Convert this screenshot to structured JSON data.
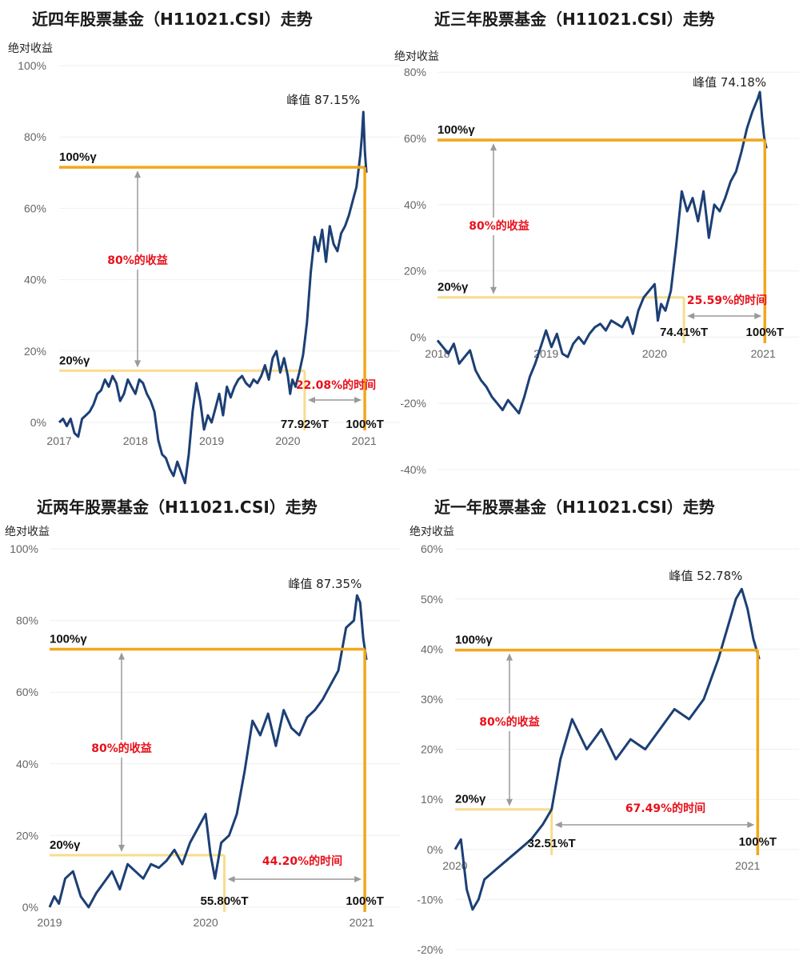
{
  "panels": [
    {
      "title": "近四年股票基金（H11021.CSI）走势",
      "ylabel": "绝对收益",
      "chart_data": {
        "type": "line",
        "x_ticks": [
          "2017",
          "2018",
          "2019",
          "2020",
          "2021"
        ],
        "x_range": [
          2017.0,
          2021.05
        ],
        "y_ticks": [
          "0%",
          "20%",
          "40%",
          "60%",
          "80%",
          "100%"
        ],
        "ylim": [
          -18,
          100
        ],
        "series": [
          {
            "x": [
              2017.0,
              2017.05,
              2017.1,
              2017.15,
              2017.2,
              2017.25,
              2017.3,
              2017.35,
              2017.4,
              2017.45,
              2017.5,
              2017.55,
              2017.6,
              2017.65,
              2017.7,
              2017.75,
              2017.8,
              2017.85,
              2017.9,
              2017.95,
              2018.0,
              2018.05,
              2018.1,
              2018.15,
              2018.2,
              2018.25,
              2018.3,
              2018.35,
              2018.4,
              2018.45,
              2018.5,
              2018.55,
              2018.6,
              2018.65,
              2018.7,
              2018.75,
              2018.8,
              2018.85,
              2018.9,
              2018.95,
              2019.0,
              2019.05,
              2019.1,
              2019.15,
              2019.2,
              2019.25,
              2019.3,
              2019.35,
              2019.4,
              2019.45,
              2019.5,
              2019.55,
              2019.6,
              2019.65,
              2019.7,
              2019.75,
              2019.8,
              2019.85,
              2019.9,
              2019.95,
              2020.0,
              2020.03,
              2020.06,
              2020.1,
              2020.15,
              2020.2,
              2020.25,
              2020.3,
              2020.35,
              2020.4,
              2020.45,
              2020.5,
              2020.55,
              2020.6,
              2020.65,
              2020.7,
              2020.75,
              2020.8,
              2020.85,
              2020.9,
              2020.95,
              2020.97,
              2020.99,
              2021.01,
              2021.03
            ],
            "y": [
              0,
              1,
              -1,
              1,
              -3,
              -4,
              1,
              2,
              3,
              5,
              8,
              9,
              12,
              10,
              13,
              11,
              6,
              8,
              12,
              10,
              8,
              12,
              11,
              8,
              6,
              3,
              -5,
              -9,
              -10,
              -13,
              -15,
              -11,
              -14,
              -17,
              -9,
              3,
              11,
              6,
              -2,
              2,
              0,
              4,
              8,
              2,
              10,
              7,
              10,
              12,
              13,
              11,
              10,
              12,
              11,
              13,
              16,
              12,
              18,
              20,
              14,
              18,
              13,
              8,
              12,
              10,
              14,
              19,
              28,
              42,
              52,
              48,
              54,
              45,
              55,
              50,
              48,
              53,
              55,
              58,
              62,
              66,
              75,
              80,
              87,
              76,
              70
            ]
          }
        ],
        "peak_label": "峰值 87.15%",
        "annotations": {
          "level_100": "100%γ",
          "level_100_value": 71.5,
          "level_20": "20%γ",
          "level_20_value": 14.5,
          "return_label": "80%的收益",
          "time_label": "22.08%的时间",
          "split_label": "77.92%T",
          "split_x": 2020.22,
          "end_label": "100%T"
        }
      }
    },
    {
      "title": "近三年股票基金（H11021.CSI）走势",
      "ylabel": "绝对收益",
      "chart_data": {
        "type": "line",
        "x_ticks": [
          "2018",
          "2019",
          "2020",
          "2021"
        ],
        "x_range": [
          2018.0,
          2021.05
        ],
        "y_ticks": [
          "-40%",
          "-20%",
          "0%",
          "20%",
          "40%",
          "60%",
          "80%"
        ],
        "ylim": [
          -40,
          80
        ],
        "series": [
          {
            "x": [
              2018.0,
              2018.05,
              2018.1,
              2018.15,
              2018.2,
              2018.25,
              2018.3,
              2018.35,
              2018.4,
              2018.45,
              2018.5,
              2018.55,
              2018.6,
              2018.65,
              2018.7,
              2018.75,
              2018.8,
              2018.85,
              2018.9,
              2018.95,
              2019.0,
              2019.05,
              2019.1,
              2019.15,
              2019.2,
              2019.25,
              2019.3,
              2019.35,
              2019.4,
              2019.45,
              2019.5,
              2019.55,
              2019.6,
              2019.65,
              2019.7,
              2019.75,
              2019.8,
              2019.85,
              2019.9,
              2019.95,
              2020.0,
              2020.03,
              2020.06,
              2020.1,
              2020.15,
              2020.2,
              2020.25,
              2020.3,
              2020.35,
              2020.4,
              2020.45,
              2020.5,
              2020.55,
              2020.6,
              2020.65,
              2020.7,
              2020.75,
              2020.8,
              2020.85,
              2020.9,
              2020.95,
              2020.97,
              2020.99,
              2021.01,
              2021.03
            ],
            "y": [
              -1,
              -3,
              -5,
              -2,
              -8,
              -6,
              -4,
              -10,
              -13,
              -15,
              -18,
              -20,
              -22,
              -19,
              -21,
              -23,
              -18,
              -12,
              -8,
              -3,
              2,
              -3,
              1,
              -5,
              -6,
              -2,
              0,
              -2,
              1,
              3,
              4,
              2,
              5,
              4,
              3,
              6,
              1,
              8,
              12,
              14,
              16,
              5,
              10,
              8,
              14,
              28,
              44,
              38,
              42,
              35,
              44,
              30,
              40,
              38,
              42,
              47,
              50,
              56,
              63,
              68,
              72,
              74,
              66,
              60,
              57
            ]
          }
        ],
        "peak_label": "峰值 74.18%",
        "annotations": {
          "level_100": "100%γ",
          "level_100_value": 59.5,
          "level_20": "20%γ",
          "level_20_value": 12,
          "return_label": "80%的收益",
          "time_label": "25.59%的时间",
          "split_label": "74.41%T",
          "split_x": 2020.27,
          "end_label": "100%T"
        }
      }
    },
    {
      "title": "近两年股票基金（H11021.CSI）走势",
      "ylabel": "绝对收益",
      "chart_data": {
        "type": "line",
        "x_ticks": [
          "2019",
          "2020",
          "2021"
        ],
        "x_range": [
          2019.0,
          2021.05
        ],
        "y_ticks": [
          "0%",
          "20%",
          "40%",
          "60%",
          "80%",
          "100%"
        ],
        "ylim": [
          -2,
          100
        ],
        "series": [
          {
            "x": [
              2019.0,
              2019.03,
              2019.06,
              2019.1,
              2019.15,
              2019.2,
              2019.25,
              2019.3,
              2019.35,
              2019.4,
              2019.45,
              2019.5,
              2019.55,
              2019.6,
              2019.65,
              2019.7,
              2019.75,
              2019.8,
              2019.85,
              2019.9,
              2019.95,
              2020.0,
              2020.03,
              2020.06,
              2020.1,
              2020.15,
              2020.2,
              2020.25,
              2020.3,
              2020.35,
              2020.4,
              2020.45,
              2020.5,
              2020.55,
              2020.6,
              2020.65,
              2020.7,
              2020.75,
              2020.8,
              2020.85,
              2020.9,
              2020.95,
              2020.97,
              2020.99,
              2021.01,
              2021.03
            ],
            "y": [
              0,
              3,
              1,
              8,
              10,
              3,
              0,
              4,
              7,
              10,
              5,
              12,
              10,
              8,
              12,
              11,
              13,
              16,
              12,
              18,
              22,
              26,
              15,
              8,
              18,
              20,
              26,
              38,
              52,
              48,
              54,
              45,
              55,
              50,
              48,
              53,
              55,
              58,
              62,
              66,
              78,
              80,
              87,
              85,
              75,
              69
            ]
          }
        ],
        "peak_label": "峰值 87.35%",
        "annotations": {
          "level_100": "100%γ",
          "level_100_value": 72,
          "level_20": "20%γ",
          "level_20_value": 14.5,
          "return_label": "80%的收益",
          "time_label": "44.20%的时间",
          "split_label": "55.80%T",
          "split_x": 2020.12,
          "end_label": "100%T"
        }
      }
    },
    {
      "title": "近一年股票基金（H11021.CSI）走势",
      "ylabel": "绝对收益",
      "chart_data": {
        "type": "line",
        "x_ticks": [
          "2020",
          "2021"
        ],
        "x_range": [
          2020.0,
          2021.05
        ],
        "y_ticks": [
          "-20%",
          "-10%",
          "0%",
          "10%",
          "20%",
          "30%",
          "40%",
          "50%",
          "60%"
        ],
        "ylim": [
          -20,
          60
        ],
        "series": [
          {
            "x": [
              2020.0,
              2020.02,
              2020.04,
              2020.06,
              2020.08,
              2020.1,
              2020.14,
              2020.18,
              2020.22,
              2020.26,
              2020.3,
              2020.33,
              2020.36,
              2020.4,
              2020.45,
              2020.5,
              2020.55,
              2020.6,
              2020.65,
              2020.7,
              2020.75,
              2020.8,
              2020.85,
              2020.9,
              2020.94,
              2020.96,
              2020.98,
              2021.0,
              2021.02,
              2021.04
            ],
            "y": [
              0,
              2,
              -8,
              -12,
              -10,
              -6,
              -4,
              -2,
              0,
              2,
              5,
              8,
              18,
              26,
              20,
              24,
              18,
              22,
              20,
              24,
              28,
              26,
              30,
              38,
              46,
              50,
              52,
              48,
              42,
              38
            ]
          }
        ],
        "peak_label": "峰值 52.78%",
        "annotations": {
          "level_100": "100%γ",
          "level_100_value": 39.8,
          "level_20": "20%γ",
          "level_20_value": 8,
          "return_label": "80%的收益",
          "time_label": "67.49%的时间",
          "split_label": "32.51%T",
          "split_x": 2020.33,
          "end_label": "100%T"
        }
      }
    }
  ],
  "colors": {
    "line": "#1c3f75",
    "orange": "#f2a71b",
    "light_orange": "#f8dc8e",
    "arrow": "#9a9a9a",
    "red": "#e8101a"
  }
}
